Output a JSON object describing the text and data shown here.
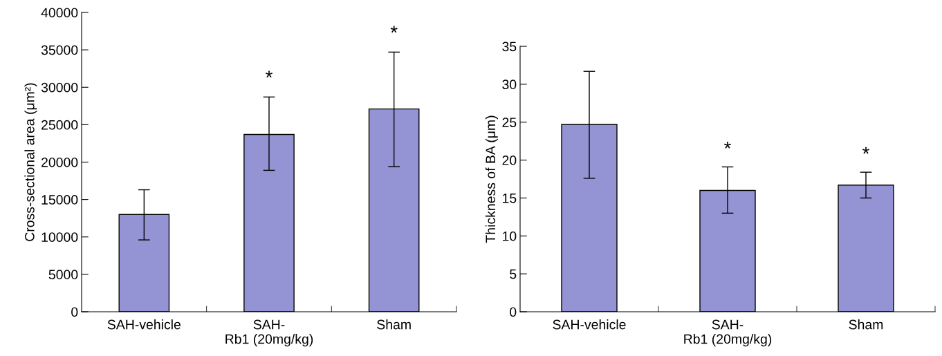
{
  "chart_data": [
    {
      "type": "bar",
      "categories": [
        "SAH-vehicle",
        "SAH-\nRb1 (20mg/kg)",
        "Sham"
      ],
      "ylabel": "Cross-sectional area (μm²)",
      "color": "#9494d4",
      "values": [
        13000,
        23700,
        27100
      ],
      "errors": [
        [
          9600,
          16300
        ],
        [
          18900,
          28700
        ],
        [
          19400,
          34700
        ]
      ],
      "ylim": [
        0,
        40000
      ],
      "yticks": [
        0,
        5000,
        10000,
        15000,
        20000,
        25000,
        30000,
        35000,
        40000
      ],
      "grid": false,
      "annotations": [
        "*",
        "*"
      ]
    },
    {
      "type": "bar",
      "categories": [
        "SAH-vehicle",
        "SAH-\nRb1 (20mg/kg)",
        "Sham"
      ],
      "ylabel": "Thickness of BA (μm)",
      "color": "#9494d4",
      "values": [
        24.7,
        16.0,
        16.7
      ],
      "errors": [
        [
          17.6,
          31.7
        ],
        [
          13.0,
          19.1
        ],
        [
          15.0,
          18.4
        ]
      ],
      "ylim": [
        0,
        35
      ],
      "yticks": [
        0,
        5,
        10,
        15,
        20,
        25,
        30,
        35
      ],
      "grid": false,
      "annotations": [
        "*",
        "*"
      ]
    }
  ]
}
